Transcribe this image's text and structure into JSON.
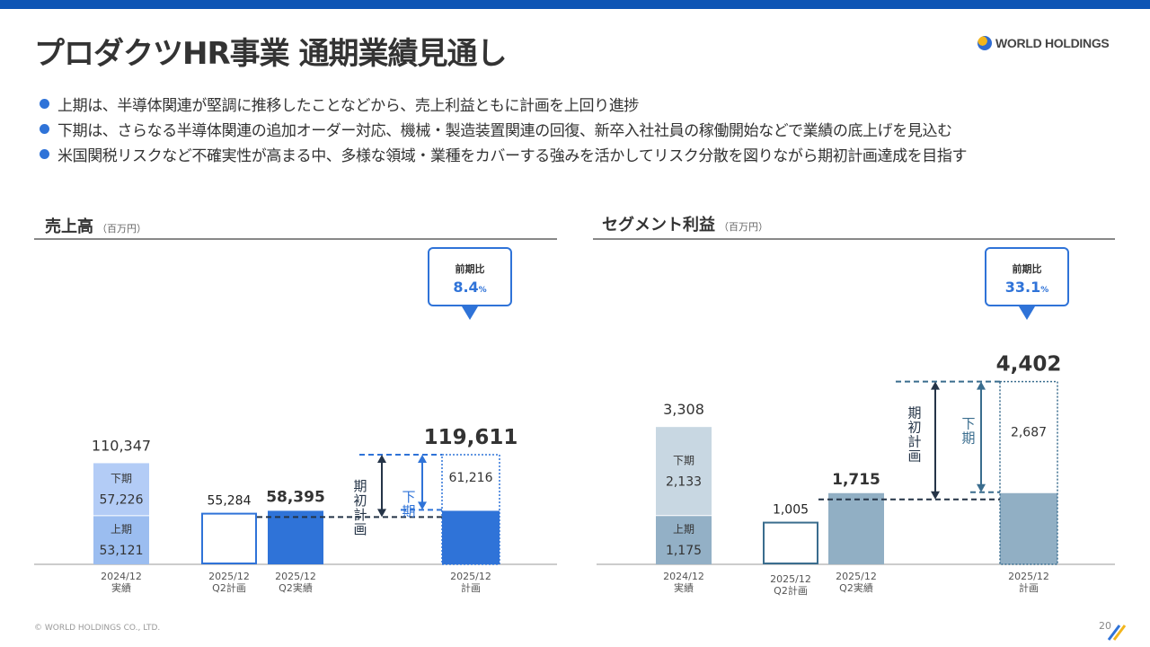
{
  "title": "プロダクツHR事業 通期業績見通し",
  "logo": {
    "text": "WORLD HOLDINGS"
  },
  "bullets": [
    "上期は、半導体関連が堅調に推移したことなどから、売上利益ともに計画を上回り進捗",
    "下期は、さらなる半導体関連の追加オーダー対応、機械・製造装置関連の回復、新卒入社社員の稼働開始などで業績の底上げを見込む",
    "米国関税リスクなど不確実性が高まる中、多様な領域・業種をカバーする強みを活かしてリスク分散を図りながら期初計画達成を目指す"
  ],
  "chart_data": [
    {
      "type": "bar",
      "title": "売上高",
      "unit": "（百万円）",
      "categories": [
        "2024/12\n実績",
        "2025/12\nQ2計画",
        "2025/12\nQ2実績",
        "2025/12\n計画"
      ],
      "bars": [
        {
          "total": 110347,
          "first_half": 53121,
          "second_half": 57226,
          "first_label": "上期",
          "second_label": "下期"
        },
        {
          "total": 55284
        },
        {
          "total": 58395
        },
        {
          "total": 119611,
          "first_half": 58395,
          "second_half": 61216
        }
      ],
      "callout": {
        "label": "前期比",
        "value": "8.4",
        "suffix": "%"
      },
      "plan_label": "期初計画",
      "second_label": "下期",
      "colors": {
        "first": "#9bbdf0",
        "second": "#b3ccf6",
        "main": "#2f73d8",
        "outline": "#2f73d8",
        "dark": "#253447"
      }
    },
    {
      "type": "bar",
      "title": "セグメント利益",
      "unit": "（百万円）",
      "categories": [
        "2024/12\n実績",
        "2025/12\nQ2計画",
        "2025/12\nQ2実績",
        "2025/12\n計画"
      ],
      "bars": [
        {
          "total": 3308,
          "first_half": 1175,
          "second_half": 2133,
          "first_label": "上期",
          "second_label": "下期"
        },
        {
          "total": 1005
        },
        {
          "total": 1715
        },
        {
          "total": 4402,
          "first_half": 1715,
          "second_half": 2687
        }
      ],
      "callout": {
        "label": "前期比",
        "value": "33.1",
        "suffix": "%"
      },
      "plan_label": "期初計画",
      "second_label": "下期",
      "colors": {
        "first": "#93b0c6",
        "second": "#c8d7e2",
        "main": "#91afc4",
        "outline": "#3a6d8e",
        "dark": "#253447"
      }
    }
  ],
  "footer": "© WORLD HOLDINGS CO., LTD.",
  "page_number": "20"
}
